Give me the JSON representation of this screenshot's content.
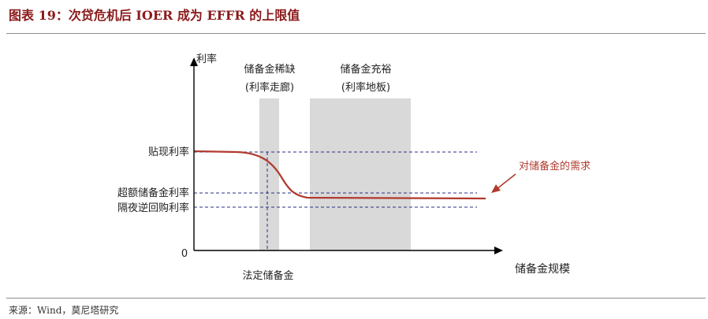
{
  "title": "图表 19：次贷危机后 IOER 成为 EFFR 的上限值",
  "source": "来源：Wind，莫尼塔研究",
  "diagram": {
    "y_axis_label": "利率",
    "x_axis_label": "储备金规模",
    "origin_label": "0",
    "x_marker_label": "法定储备金",
    "rate_lines": [
      {
        "label": "贴现利率"
      },
      {
        "label": "超额储备金利率"
      },
      {
        "label": "隔夜逆回购利率"
      }
    ],
    "regions": [
      {
        "label_line1": "储备金稀缺",
        "label_line2": "(利率走廊)"
      },
      {
        "label_line1": "储备金充裕",
        "label_line2": "(利率地板)"
      }
    ],
    "demand_label": "对储备金的需求",
    "colors": {
      "title": "#8B1A1A",
      "demand_curve": "#B03A2E",
      "rate_lines": "#2B2F84",
      "shaded_region": "#D9D9D9",
      "axis": "#000000"
    }
  }
}
